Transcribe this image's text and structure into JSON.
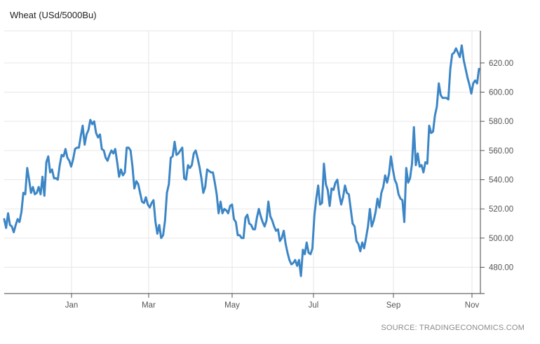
{
  "chart_data": {
    "type": "line",
    "title": "Wheat",
    "subtitle": "(USd/5000Bu)",
    "source": "SOURCE: TRADINGECONOMICS.COM",
    "xlabel": "",
    "ylabel": "",
    "x_ticks": [
      "Jan",
      "Mar",
      "May",
      "Jul",
      "Sep",
      "Nov"
    ],
    "y_ticks": [
      "480.00",
      "500.00",
      "520.00",
      "540.00",
      "560.00",
      "580.00",
      "600.00",
      "620.00"
    ],
    "ylim": [
      462,
      642
    ],
    "grid": true,
    "series": [
      {
        "color": "#3c86c6",
        "values": [
          513,
          507,
          517,
          509,
          508,
          504,
          509,
          513,
          511,
          518,
          531,
          530,
          548,
          540,
          531,
          535,
          530,
          531,
          535,
          530,
          542,
          529,
          552,
          556,
          545,
          547,
          541,
          541,
          540,
          550,
          557,
          556,
          561,
          555,
          553,
          549,
          554,
          561,
          562,
          562,
          570,
          577,
          564,
          571,
          574,
          581,
          578,
          580,
          572,
          569,
          571,
          561,
          560,
          555,
          553,
          557,
          560,
          558,
          561,
          552,
          542,
          547,
          543,
          545,
          562,
          562,
          560,
          549,
          534,
          539,
          537,
          531,
          525,
          524,
          528,
          523,
          521,
          524,
          526,
          511,
          503,
          509,
          500,
          502,
          512,
          531,
          537,
          555,
          556,
          566,
          557,
          558,
          560,
          562,
          541,
          540,
          550,
          548,
          550,
          558,
          560,
          555,
          549,
          541,
          531,
          535,
          547,
          546,
          545,
          545,
          538,
          530,
          517,
          525,
          517,
          520,
          519,
          517,
          522,
          523,
          513,
          511,
          502,
          502,
          500,
          500,
          514,
          516,
          510,
          509,
          506,
          506,
          514,
          520,
          515,
          511,
          508,
          512,
          525,
          515,
          512,
          508,
          505,
          506,
          498,
          500,
          505,
          496,
          490,
          485,
          482,
          483,
          485,
          481,
          485,
          474,
          492,
          489,
          497,
          490,
          489,
          493,
          515,
          527,
          536,
          523,
          524,
          551,
          537,
          533,
          522,
          534,
          533,
          538,
          540,
          530,
          523,
          528,
          536,
          531,
          530,
          520,
          510,
          508,
          498,
          496,
          491,
          497,
          493,
          500,
          508,
          520,
          508,
          512,
          518,
          527,
          521,
          531,
          535,
          543,
          538,
          544,
          556,
          547,
          540,
          537,
          530,
          527,
          526,
          511,
          548,
          538,
          541,
          551,
          576,
          550,
          558,
          549,
          550,
          545,
          552,
          551,
          577,
          572,
          573,
          584,
          590,
          606,
          598,
          596,
          596,
          596,
          595,
          616,
          626,
          627,
          630,
          627,
          624,
          632,
          622,
          616,
          610,
          605,
          599,
          606,
          608,
          606,
          616
        ]
      }
    ]
  }
}
